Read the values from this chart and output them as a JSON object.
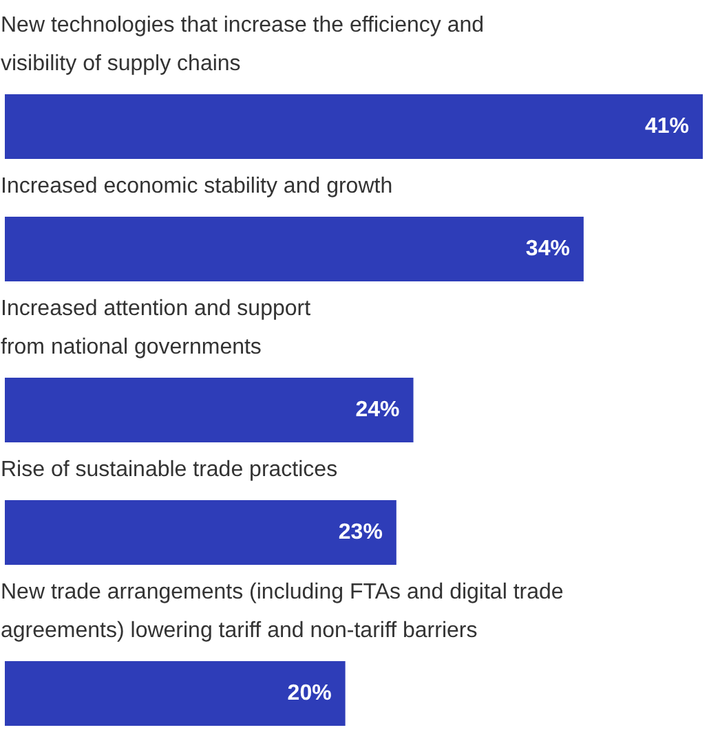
{
  "chart_data": {
    "type": "bar",
    "orientation": "horizontal",
    "categories": [
      "New technologies that increase the efficiency and\nvisibility of supply chains",
      "Increased economic stability and growth",
      "Increased attention and support\nfrom national governments",
      "Rise of sustainable trade practices",
      "New trade arrangements (including FTAs and digital trade\nagreements) lowering tariff and non-tariff barriers"
    ],
    "values": [
      41,
      34,
      24,
      23,
      20
    ],
    "value_labels": [
      "41%",
      "34%",
      "24%",
      "23%",
      "20%"
    ],
    "color": "#2e3db8",
    "xlim": [
      0,
      41
    ]
  }
}
